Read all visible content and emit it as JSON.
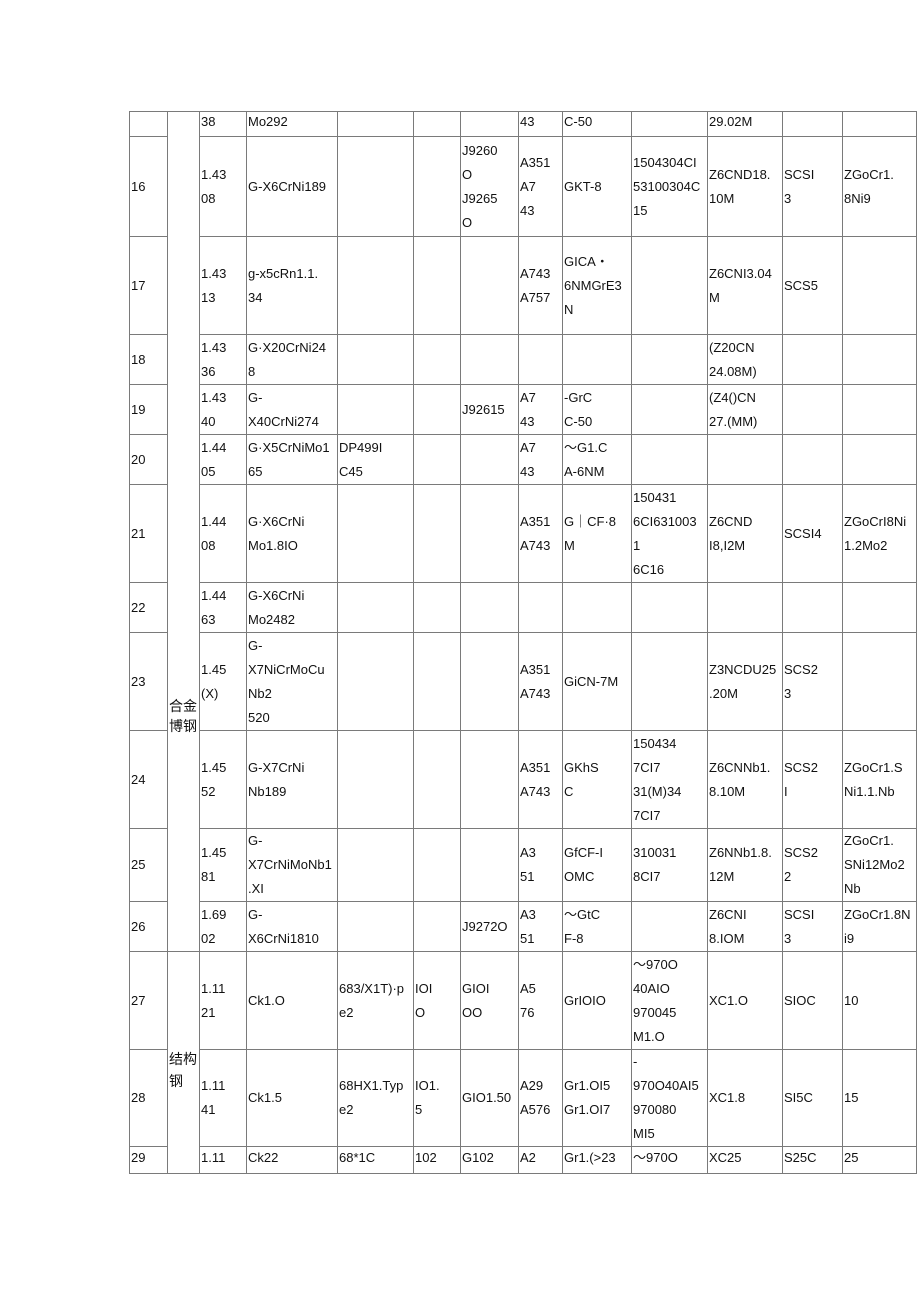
{
  "categories": [
    {
      "label": "合金\n博钢"
    },
    {
      "label": "结构\n钢"
    }
  ],
  "rows": [
    {
      "no": "",
      "cells": [
        "38",
        "Mo292",
        "",
        "",
        "",
        "43",
        "C-50",
        "",
        "29.02M",
        "",
        ""
      ]
    },
    {
      "no": "16",
      "cells": [
        "1.43\n08",
        "G-X6CrNi189",
        "",
        "",
        "J9260\nO\nJ9265\nO",
        "A351\nA7\n43",
        "GKT-8",
        "1504304CI\n53100304C\n15",
        "Z6CND18.\n10M",
        "SCSI\n3",
        "ZGoCr1.\n8Ni9"
      ]
    },
    {
      "no": "17",
      "cells": [
        "1.43\n13",
        "g-x5cRn1.1.\n34",
        "",
        "",
        "",
        "A743\nA757",
        "GICA・\n6NMGrE3\nN",
        "",
        "Z6CNI3.04\nM",
        "SCS5",
        ""
      ]
    },
    {
      "no": "18",
      "cells": [
        "1.43\n36",
        "G·X20CrNi24\n8",
        "",
        "",
        "",
        "",
        "",
        "",
        "(Z20CN\n24.08M)",
        "",
        ""
      ]
    },
    {
      "no": "19",
      "cells": [
        "1.43\n40",
        "G-\nX40CrNi274",
        "",
        "",
        "J92615",
        "A7\n43",
        "-GrC\nC-50",
        "",
        "(Z4()CN\n27.(MM)",
        "",
        ""
      ]
    },
    {
      "no": "20",
      "cells": [
        "1.44\n05",
        "G·X5CrNiMo1\n65",
        "DP499I\nC45",
        "",
        "",
        "A7\n43",
        "～G1.C\nA-6NM",
        "",
        "",
        "",
        ""
      ]
    },
    {
      "no": "21",
      "cells": [
        "1.44\n08",
        "G·X6CrNi\nMo1.8IO",
        "",
        "",
        "",
        "A351\nA743",
        "G｜CF·8\nM",
        "150431\n6CI631003\n1\n6C16",
        "Z6CND\nI8,I2M",
        "SCSI4",
        "ZGoCrI8Ni\n1.2Mo2"
      ]
    },
    {
      "no": "22",
      "cells": [
        "1.44\n63",
        "G-X6CrNi\nMo2482",
        "",
        "",
        "",
        "",
        "",
        "",
        "",
        "",
        ""
      ]
    },
    {
      "no": "23",
      "cells": [
        "1.45\n(X)",
        "G-\nX7NiCrMoCu\nNb2\n520",
        "",
        "",
        "",
        "A351\nA743",
        "GiCN-7M",
        "",
        "Z3NCDU25\n.20M",
        "SCS2\n3",
        ""
      ]
    },
    {
      "no": "24",
      "cells": [
        "1.45\n52",
        "G-X7CrNi\nNb189",
        "",
        "",
        "",
        "A351\nA743",
        "GKhS\nC",
        "150434\n7CI7\n31(M)34\n7CI7",
        "Z6CNNb1.\n8.10M",
        "SCS2\nI",
        "ZGoCr1.S\nNi1.1.Nb"
      ]
    },
    {
      "no": "25",
      "cells": [
        "1.45\n81",
        "G-\nX7CrNiMoNb1\n.XI",
        "",
        "",
        "",
        "A3\n51",
        "GfCF-I\nOMC",
        "310031\n8CI7",
        "Z6NNb1.8.\n12M",
        "SCS2\n2",
        "ZGoCr1.\nSNi12Mo2\nNb"
      ]
    },
    {
      "no": "26",
      "cells": [
        "1.69\n02",
        "G-\nX6CrNi1810",
        "",
        "",
        "J9272O",
        "A3\n51",
        "～GtC\nF-8",
        "",
        "Z6CNI\n8.IOM",
        "SCSI\n3",
        "ZGoCr1.8N\ni9"
      ]
    },
    {
      "no": "27",
      "cells": [
        "1.11\n21",
        "Ck1.O",
        "683/X1T)·p\ne2",
        "IOI\nO",
        "GIOI\nOO",
        "A5\n76",
        "GrIOIO",
        "～970O\n40AIO\n970045\n   M1.O",
        "XC1.O",
        "SIOC",
        "10"
      ]
    },
    {
      "no": "28",
      "cells": [
        "1.11\n41",
        "Ck1.5",
        "68HX1.Typ\ne2",
        "IO1.\n5",
        "GIO1.50",
        "A29\nA576",
        "Gr1.OI5\nGr1.OI7",
        "-\n970O40AI5\n970080\n   MI5",
        "XC1.8",
        "SI5C",
        "15"
      ]
    },
    {
      "no": "29",
      "cells": [
        "1.11",
        "Ck22",
        "68*1C",
        "102",
        "G102",
        "A2",
        "Gr1.(>23",
        "～970O",
        "XC25",
        "S25C",
        "25"
      ]
    }
  ]
}
